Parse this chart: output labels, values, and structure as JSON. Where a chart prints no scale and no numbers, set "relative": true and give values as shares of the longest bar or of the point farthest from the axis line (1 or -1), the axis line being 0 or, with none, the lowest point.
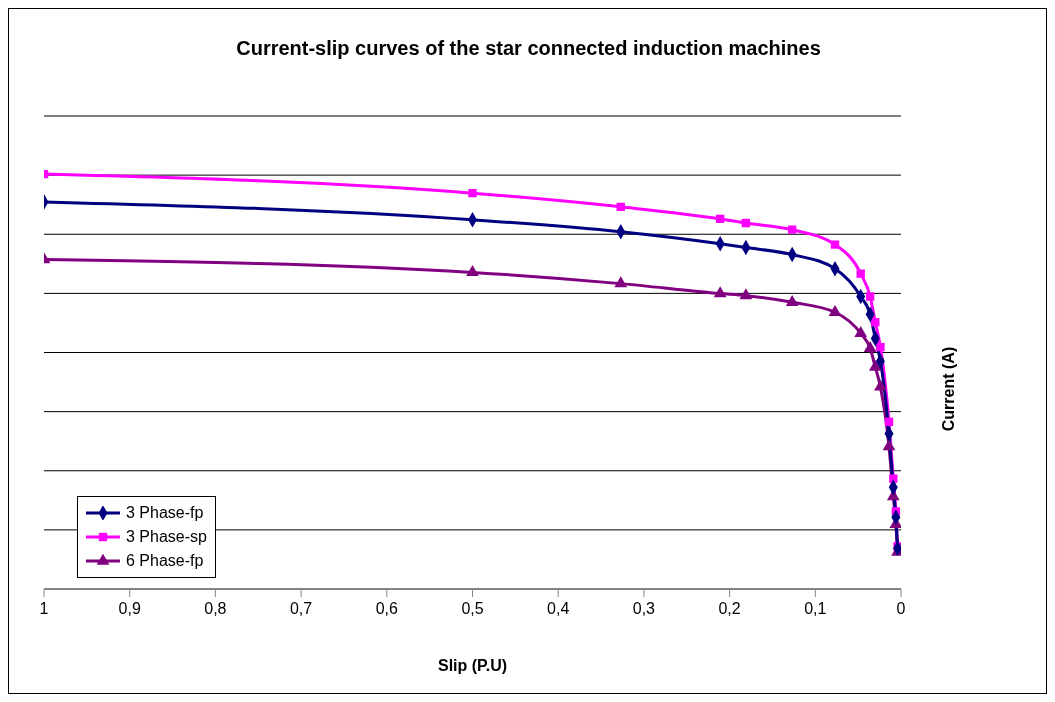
{
  "chart_data": {
    "type": "line",
    "title": "Current-slip curves of the star connected induction machines",
    "xlabel": "Slip (P.U)",
    "ylabel": "Current (A)",
    "relative": true,
    "x": [
      1,
      0.5,
      0.327,
      0.211,
      0.181,
      0.127,
      0.077,
      0.047,
      0.036,
      0.03,
      0.024,
      0.014,
      0.009,
      0.006,
      0.004
    ],
    "xlim": [
      1,
      0
    ],
    "xticks": [
      1,
      {
        "value": 0.9,
        "label": "0,9"
      },
      {
        "value": 0.8,
        "label": "0,8"
      },
      {
        "value": 0.7,
        "label": "0,7"
      },
      {
        "value": 0.6,
        "label": "0,6"
      },
      {
        "value": 0.5,
        "label": "0,5"
      },
      {
        "value": 0.4,
        "label": "0,4"
      },
      {
        "value": 0.3,
        "label": "0,3"
      },
      {
        "value": 0.2,
        "label": "0,2"
      },
      {
        "value": 0.1,
        "label": "0,1"
      },
      0
    ],
    "series": [
      {
        "name": "3 Phase-fp",
        "color": "#000080",
        "marker": "diamond",
        "values": [
          0.933,
          0.89,
          0.861,
          0.832,
          0.823,
          0.806,
          0.772,
          0.705,
          0.662,
          0.604,
          0.549,
          0.374,
          0.245,
          0.173,
          0.098
        ]
      },
      {
        "name": "3 Phase-sp",
        "color": "#ff00ff",
        "marker": "square",
        "values": [
          1,
          0.954,
          0.921,
          0.892,
          0.882,
          0.866,
          0.83,
          0.76,
          0.705,
          0.643,
          0.583,
          0.403,
          0.266,
          0.187,
          0.103
        ]
      },
      {
        "name": "6 Phase-fp",
        "color": "#800080",
        "marker": "triangle",
        "values": [
          0.794,
          0.763,
          0.736,
          0.712,
          0.707,
          0.691,
          0.667,
          0.616,
          0.58,
          0.535,
          0.487,
          0.343,
          0.223,
          0.156,
          0.089
        ]
      }
    ],
    "grid": "y",
    "legend": "bottom left",
    "line_style": "solid"
  }
}
